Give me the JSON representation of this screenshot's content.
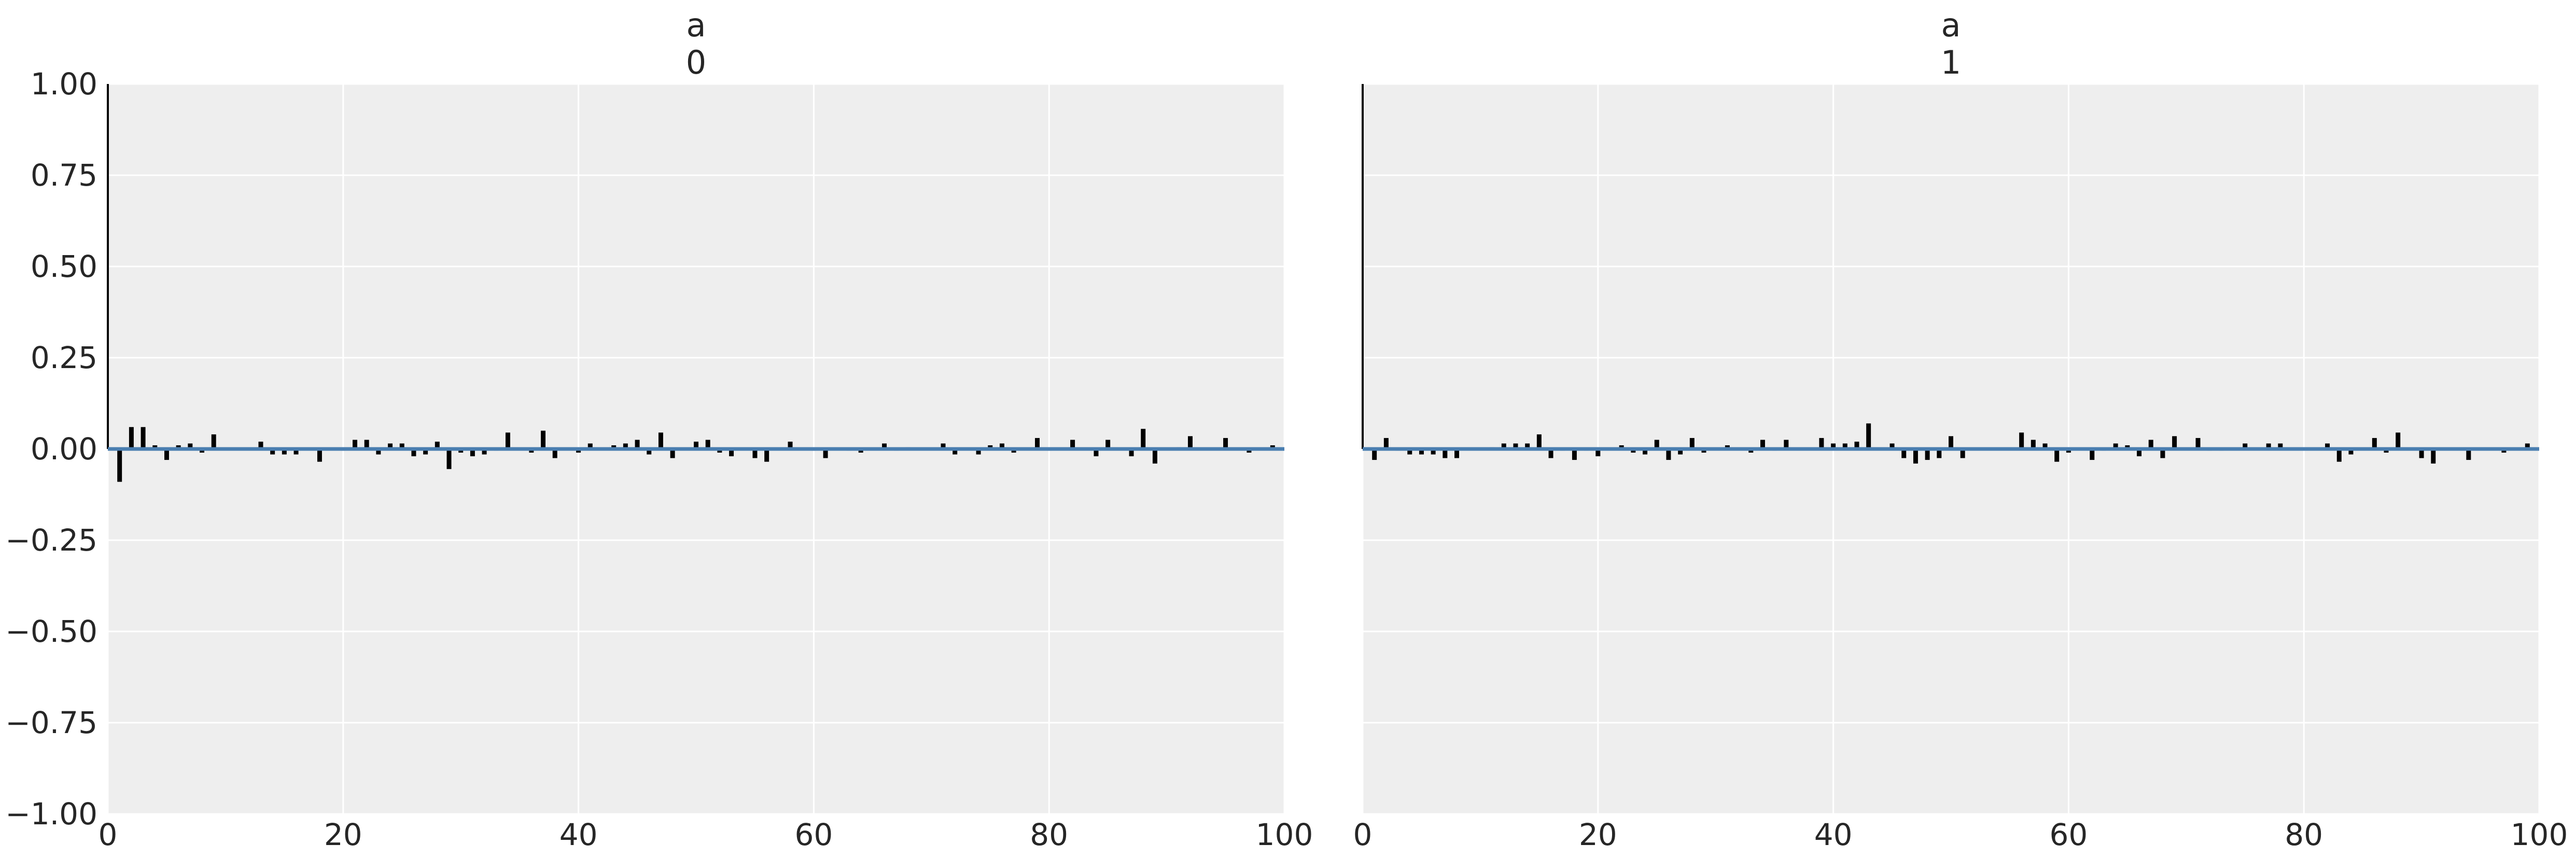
{
  "colors": {
    "background": "#eeeeee",
    "grid": "#ffffff",
    "bars": "#000000",
    "zero_line": "#4a7eb0"
  },
  "chart_data": [
    {
      "type": "bar",
      "title_lines": [
        "a",
        "0"
      ],
      "xlim": [
        0,
        100
      ],
      "ylim": [
        -1,
        1
      ],
      "xticks": [
        0,
        20,
        40,
        60,
        80,
        100
      ],
      "yticks": [
        -1.0,
        -0.75,
        -0.5,
        -0.25,
        0.0,
        0.25,
        0.5,
        0.75,
        1.0
      ],
      "ytick_labels": [
        "−1.00",
        "−0.75",
        "−0.50",
        "−0.25",
        "0.00",
        "0.25",
        "0.50",
        "0.75",
        "1.00"
      ],
      "grid": true,
      "x": [
        0,
        1,
        2,
        3,
        4,
        5,
        6,
        7,
        8,
        9,
        10,
        11,
        12,
        13,
        14,
        15,
        16,
        17,
        18,
        19,
        20,
        21,
        22,
        23,
        24,
        25,
        26,
        27,
        28,
        29,
        30,
        31,
        32,
        33,
        34,
        35,
        36,
        37,
        38,
        39,
        40,
        41,
        42,
        43,
        44,
        45,
        46,
        47,
        48,
        49,
        50,
        51,
        52,
        53,
        54,
        55,
        56,
        57,
        58,
        59,
        60,
        61,
        62,
        63,
        64,
        65,
        66,
        67,
        68,
        69,
        70,
        71,
        72,
        73,
        74,
        75,
        76,
        77,
        78,
        79,
        80,
        81,
        82,
        83,
        84,
        85,
        86,
        87,
        88,
        89,
        90,
        91,
        92,
        93,
        94,
        95,
        96,
        97,
        98,
        99
      ],
      "values": [
        1.0,
        -0.09,
        0.06,
        0.06,
        0.01,
        -0.03,
        0.01,
        0.015,
        -0.01,
        0.04,
        0.0,
        0.0,
        0.0,
        0.02,
        -0.015,
        -0.015,
        -0.015,
        0.0,
        -0.035,
        0.0,
        -0.005,
        0.025,
        0.025,
        -0.015,
        0.015,
        0.015,
        -0.02,
        -0.015,
        0.02,
        -0.055,
        -0.01,
        -0.02,
        -0.015,
        -0.005,
        0.045,
        0.0,
        -0.01,
        0.05,
        -0.025,
        0.0,
        -0.01,
        0.015,
        0.0,
        0.01,
        0.015,
        0.025,
        -0.015,
        0.045,
        -0.025,
        0.0,
        0.02,
        0.025,
        -0.01,
        -0.02,
        0.0,
        -0.025,
        -0.035,
        0.0,
        0.02,
        0.0,
        -0.005,
        -0.025,
        0.0,
        -0.005,
        -0.01,
        0.0,
        0.015,
        -0.005,
        0.005,
        0.0,
        0.0,
        0.015,
        -0.015,
        0.0,
        -0.015,
        0.01,
        0.015,
        -0.01,
        0.0,
        0.03,
        -0.005,
        0.0,
        0.025,
        0.0,
        -0.02,
        0.025,
        0.0,
        -0.02,
        0.055,
        -0.04,
        0.0,
        0.005,
        0.035,
        0.0,
        0.0,
        0.03,
        0.0,
        -0.01,
        0.0,
        0.01
      ]
    },
    {
      "type": "bar",
      "title_lines": [
        "a",
        "1"
      ],
      "xlim": [
        0,
        100
      ],
      "ylim": [
        -1,
        1
      ],
      "xticks": [
        0,
        20,
        40,
        60,
        80,
        100
      ],
      "grid": true,
      "x": [
        0,
        1,
        2,
        3,
        4,
        5,
        6,
        7,
        8,
        9,
        10,
        11,
        12,
        13,
        14,
        15,
        16,
        17,
        18,
        19,
        20,
        21,
        22,
        23,
        24,
        25,
        26,
        27,
        28,
        29,
        30,
        31,
        32,
        33,
        34,
        35,
        36,
        37,
        38,
        39,
        40,
        41,
        42,
        43,
        44,
        45,
        46,
        47,
        48,
        49,
        50,
        51,
        52,
        53,
        54,
        55,
        56,
        57,
        58,
        59,
        60,
        61,
        62,
        63,
        64,
        65,
        66,
        67,
        68,
        69,
        70,
        71,
        72,
        73,
        74,
        75,
        76,
        77,
        78,
        79,
        80,
        81,
        82,
        83,
        84,
        85,
        86,
        87,
        88,
        89,
        90,
        91,
        92,
        93,
        94,
        95,
        96,
        97,
        98,
        99
      ],
      "values": [
        1.0,
        -0.03,
        0.03,
        -0.005,
        -0.015,
        -0.015,
        -0.015,
        -0.025,
        -0.025,
        0.0,
        0.0,
        0.005,
        0.015,
        0.015,
        0.015,
        0.04,
        -0.025,
        -0.005,
        -0.03,
        -0.005,
        -0.02,
        0.0,
        0.01,
        -0.01,
        -0.015,
        0.025,
        -0.03,
        -0.015,
        0.03,
        -0.01,
        0.0,
        0.01,
        0.0,
        -0.01,
        0.025,
        -0.005,
        0.025,
        0.0,
        0.0,
        0.03,
        0.015,
        0.015,
        0.02,
        0.07,
        0.0,
        0.015,
        -0.025,
        -0.04,
        -0.03,
        -0.025,
        0.035,
        -0.025,
        0.0,
        0.0,
        0.0,
        0.0,
        0.045,
        0.025,
        0.015,
        -0.035,
        -0.01,
        0.0,
        -0.03,
        -0.005,
        0.015,
        0.01,
        -0.02,
        0.025,
        -0.025,
        0.035,
        0.0,
        0.03,
        -0.005,
        -0.005,
        0.0,
        0.015,
        0.0,
        0.015,
        0.015,
        0.0,
        0.0,
        0.0,
        0.015,
        -0.035,
        -0.015,
        0.0,
        0.03,
        -0.01,
        0.045,
        0.0,
        -0.025,
        -0.04,
        0.0,
        0.0,
        -0.03,
        0.0,
        0.0,
        -0.01,
        0.0,
        0.015
      ]
    }
  ]
}
